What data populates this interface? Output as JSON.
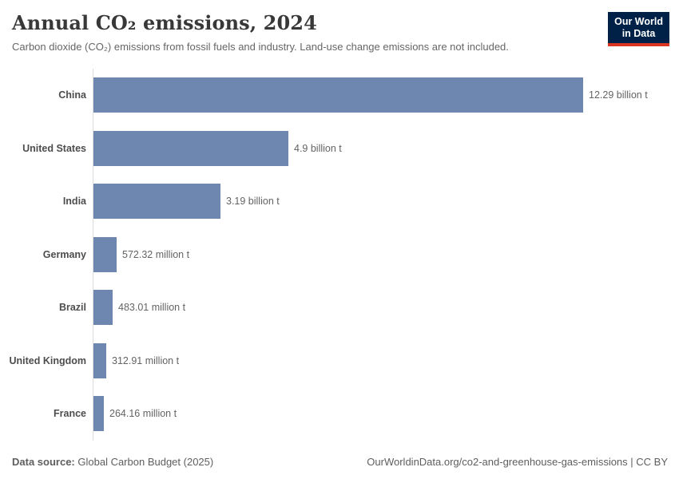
{
  "header": {
    "title": "Annual CO₂ emissions, 2024",
    "subtitle": "Carbon dioxide (CO₂) emissions from fossil fuels and industry. Land-use change emissions are not included.",
    "logo": {
      "line1": "Our World",
      "line2": "in Data",
      "bg_color": "#002147",
      "accent_color": "#d8341f"
    }
  },
  "chart_data": {
    "type": "bar",
    "orientation": "horizontal",
    "title": "Annual CO₂ emissions, 2024",
    "unit": "t",
    "categories": [
      "China",
      "United States",
      "India",
      "Germany",
      "Brazil",
      "United Kingdom",
      "France"
    ],
    "values": [
      12.29,
      4.9,
      3.19,
      0.57232,
      0.48301,
      0.31291,
      0.26416
    ],
    "value_labels": [
      "12.29 billion t",
      "4.9 billion t",
      "3.19 billion t",
      "572.32 million t",
      "483.01 million t",
      "312.91 million t",
      "264.16 million t"
    ],
    "xlim": [
      0,
      12.29
    ],
    "bar_color": "#6d87b0",
    "axis_line_color": "#dcdcdc",
    "grid": false,
    "legend": false
  },
  "footer": {
    "source_label": "Data source:",
    "source_value": "Global Carbon Budget (2025)",
    "credit": "OurWorldinData.org/co2-and-greenhouse-gas-emissions | CC BY"
  }
}
